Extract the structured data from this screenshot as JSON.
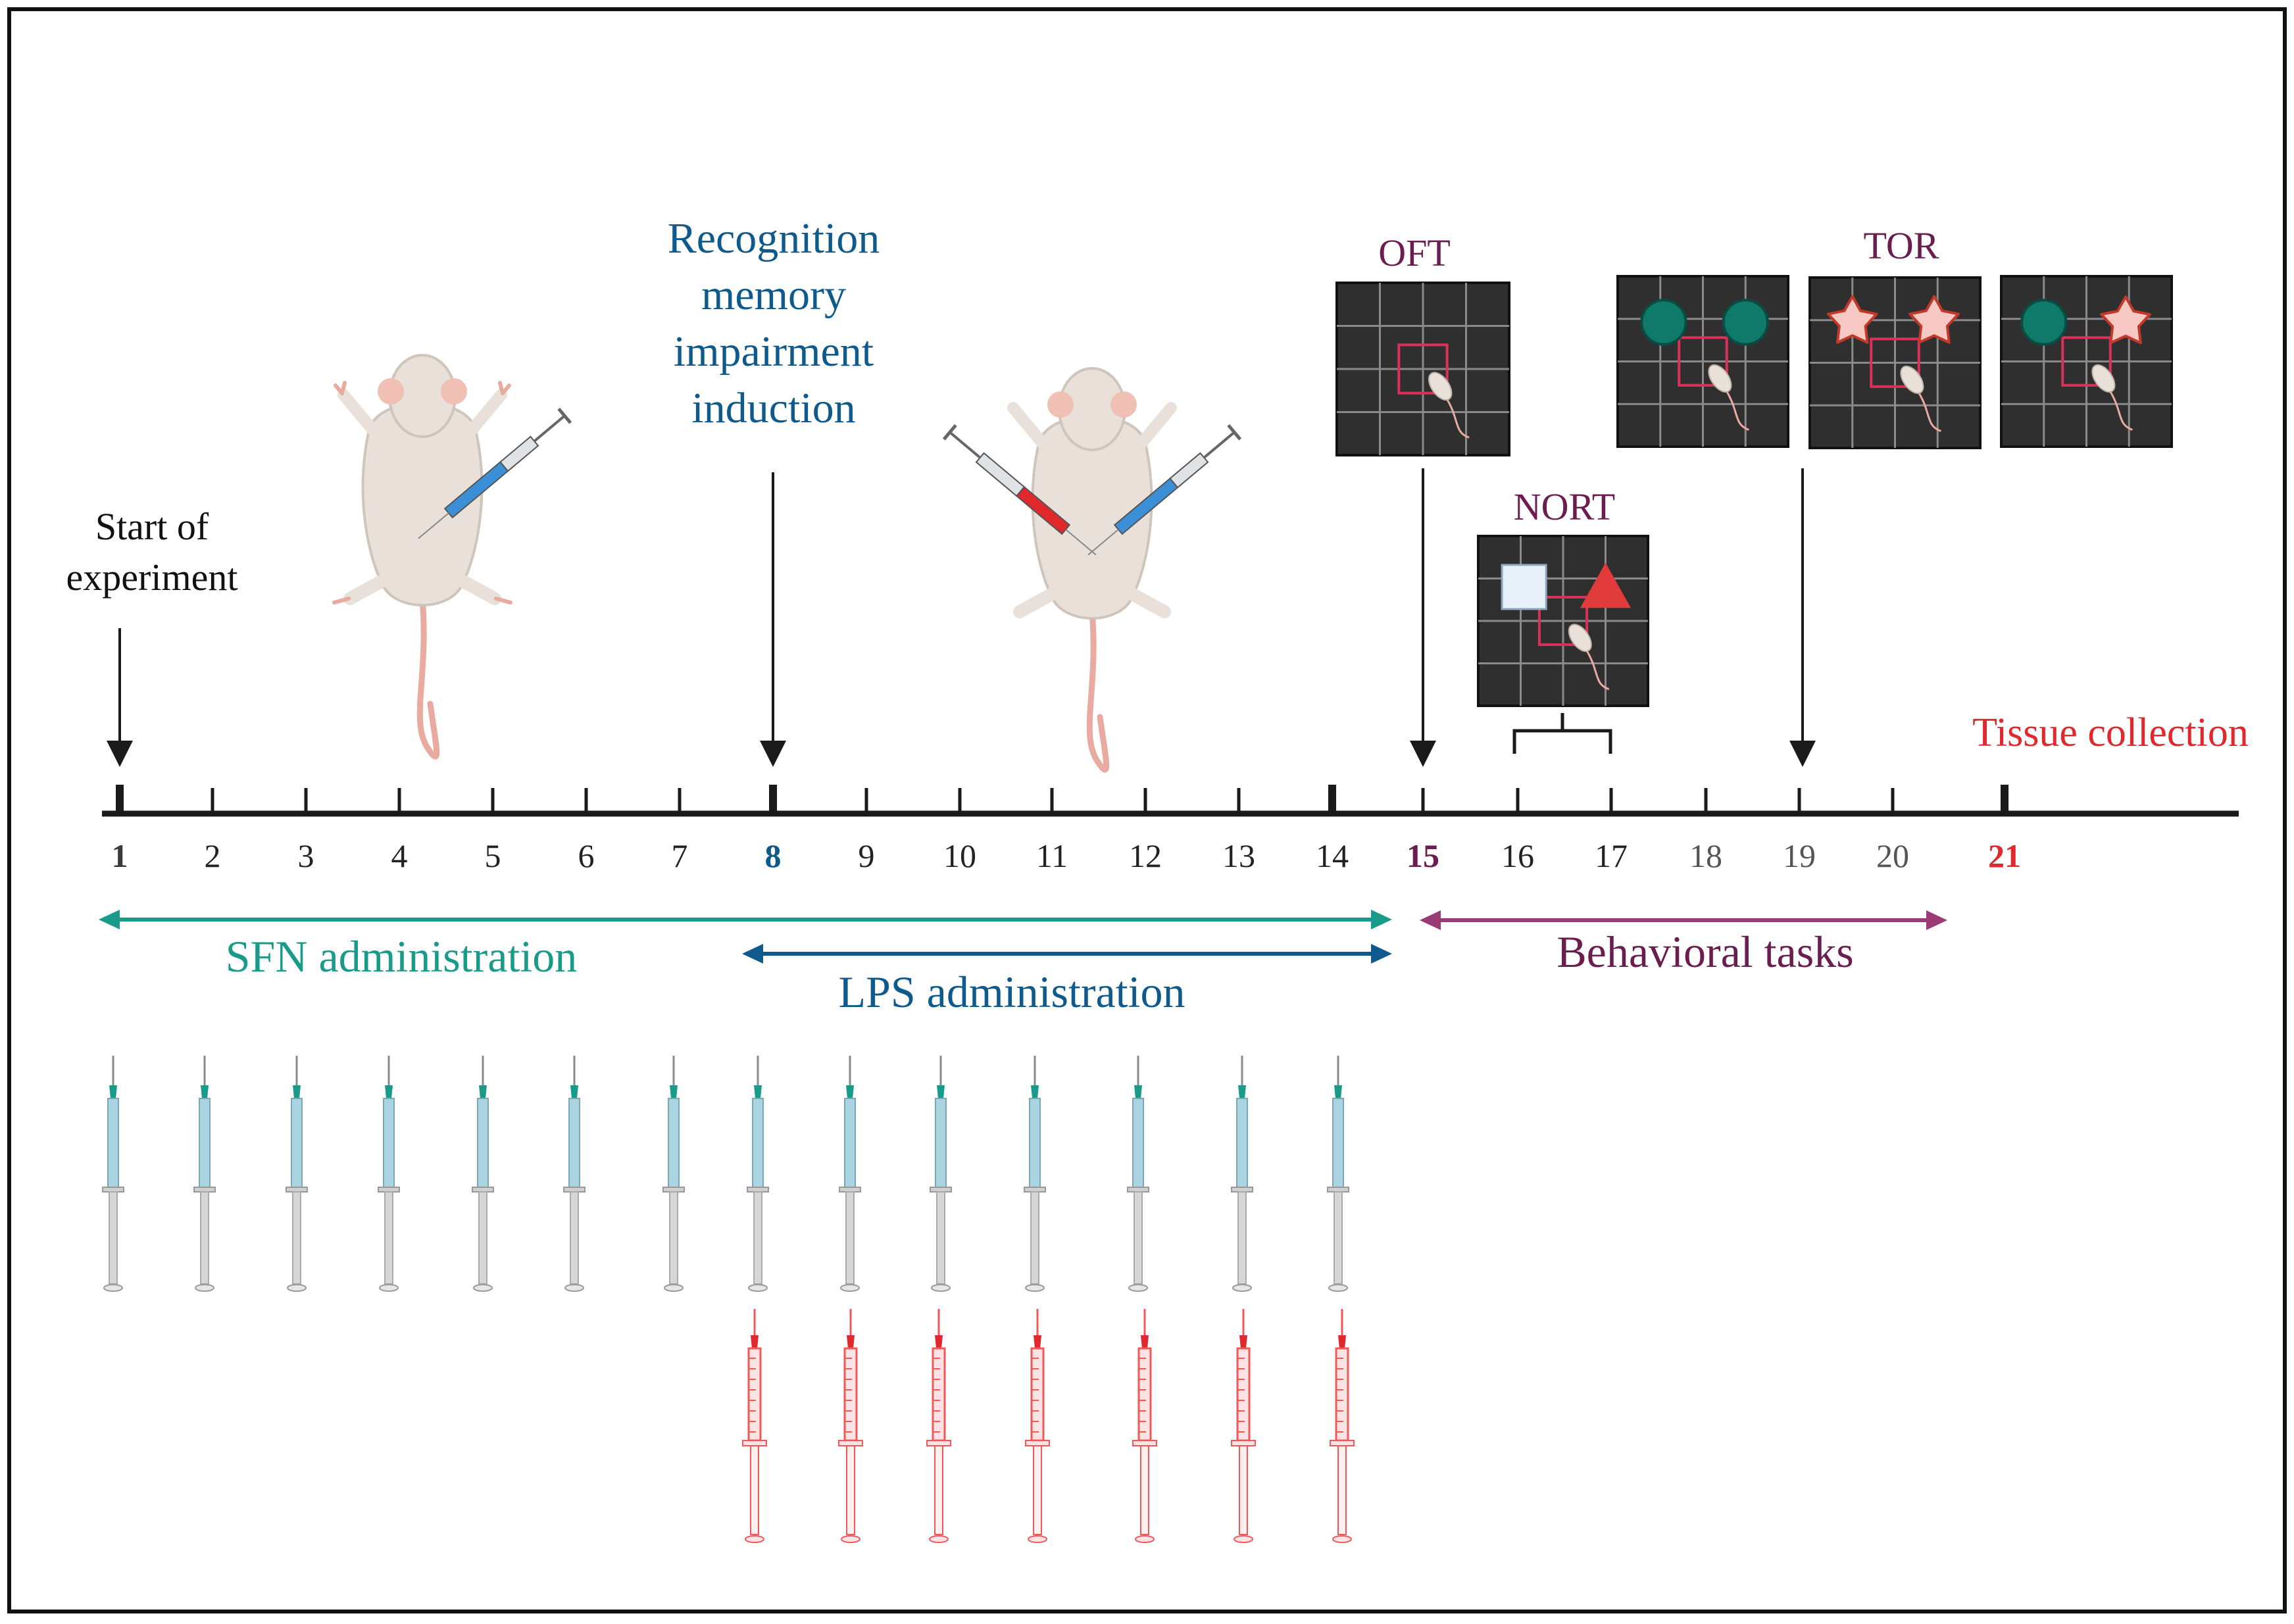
{
  "labels": {
    "start": [
      "Start of",
      "experiment"
    ],
    "induction": [
      "Recognition",
      "memory",
      "impairment",
      "induction"
    ],
    "tissue": "Tissue collection",
    "oft": "OFT",
    "nort": "NORT",
    "tor": "TOR"
  },
  "timeline": {
    "days": [
      "1",
      "2",
      "3",
      "4",
      "5",
      "6",
      "7",
      "8",
      "9",
      "10",
      "11",
      "12",
      "13",
      "14",
      "15",
      "16",
      "17",
      "18",
      "19",
      "20",
      "21"
    ]
  },
  "periods": {
    "sfn": "SFN administration",
    "lps": "LPS administration",
    "behavior": "Behavioral tasks"
  },
  "syringes": {
    "sfn_days": [
      1,
      2,
      3,
      4,
      5,
      6,
      7,
      8,
      9,
      10,
      11,
      12,
      13,
      14
    ],
    "lps_days": [
      8,
      9,
      10,
      11,
      12,
      13,
      14
    ]
  },
  "colors": {
    "frame": "#111111",
    "axis": "#1a1a1a",
    "teal": "#1a9b8a",
    "navy": "#0f5a8c",
    "plum": "#6b1d4f",
    "magenta": "#9b3a74",
    "red": "#e0282d",
    "arena": "#2f2f2f",
    "arena_grid": "#8a8a8a",
    "path": "#d8325a",
    "object_teal": "#0f7a6a",
    "object_star": "#f8c8c4",
    "object_red": "#e23b3b",
    "object_cube": "#e8f0fa",
    "mouse": "#e9e1d9",
    "mouse_shade": "#cfc5ba",
    "tail": "#e9aaa0",
    "syringe_blue": "#a9d4e0",
    "syringe_gray": "#d6d6d6",
    "syringe_red": "#f2575a"
  }
}
